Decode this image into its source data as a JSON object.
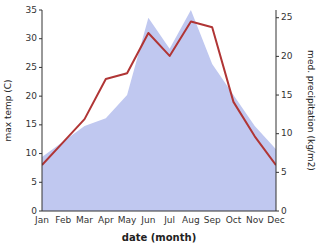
{
  "chart_data": {
    "type": "line",
    "x_label": "date (month)",
    "y_label": "max temp (C)",
    "y2_label": "med. precipitation (kg/m2)",
    "categories": [
      "Jan",
      "Feb",
      "Mar",
      "Apr",
      "May",
      "Jun",
      "Jul",
      "Aug",
      "Sep",
      "Oct",
      "Nov",
      "Dec"
    ],
    "series": [
      {
        "type": "area",
        "axis": "y2",
        "color": "#c0c8f0",
        "values": [
          7.0,
          9.0,
          11.0,
          12.0,
          15.0,
          25.0,
          21.0,
          26.0,
          19.0,
          15.0,
          11.0,
          8.0
        ]
      },
      {
        "type": "line",
        "color": "#b03535",
        "values": [
          8.0,
          12.0,
          16.0,
          23.0,
          24.0,
          31.0,
          27.0,
          33.0,
          32.0,
          19.0,
          13.0,
          8.0
        ]
      }
    ],
    "ylim": [
      0,
      35
    ],
    "yticks": [
      0,
      5,
      10,
      15,
      20,
      25,
      30,
      35
    ],
    "y2lim": [
      0,
      26
    ],
    "y2ticks": [
      0,
      5,
      10,
      15,
      20,
      25
    ],
    "grid": false
  }
}
